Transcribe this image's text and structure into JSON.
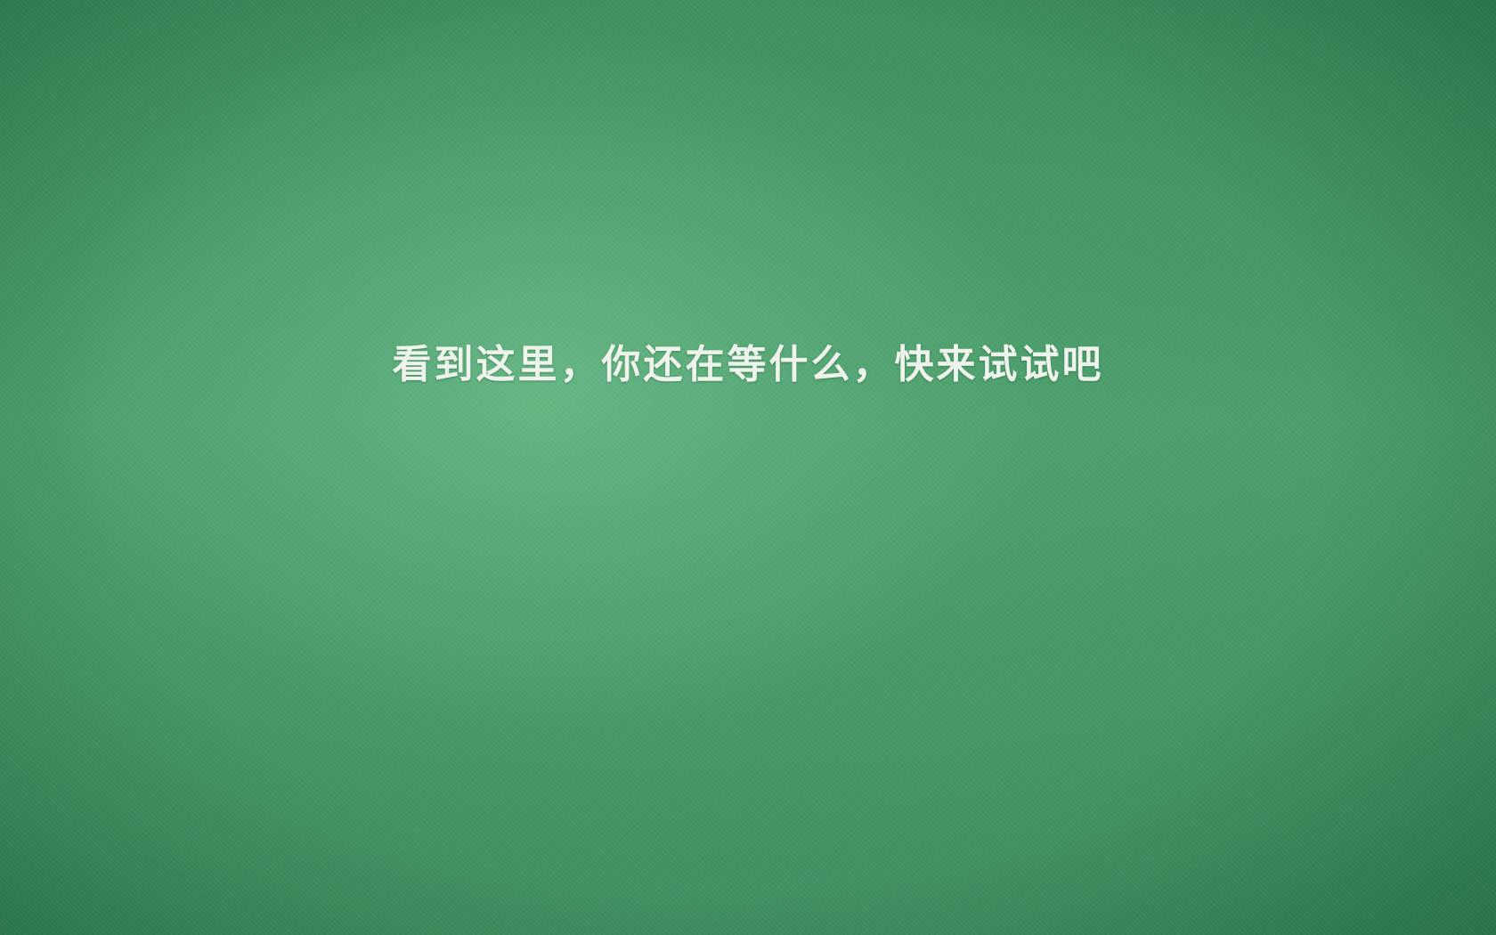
{
  "background": {
    "color_center": "#6dbf8e",
    "color_edge": "#2f7d50"
  },
  "message": {
    "text": "看到这里，你还在等什么，快来试试吧",
    "color": "#eef3ec"
  }
}
